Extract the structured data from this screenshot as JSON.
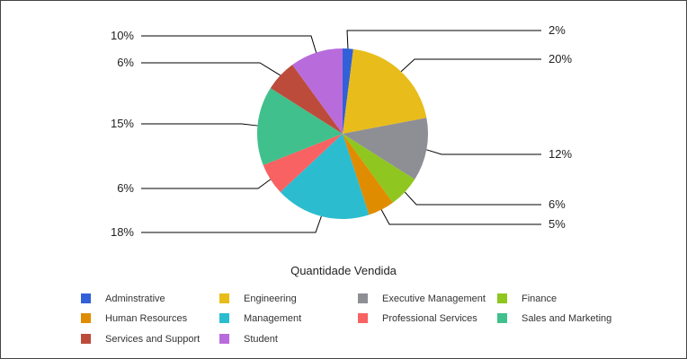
{
  "chart_data": {
    "type": "pie",
    "title": "Quantidade Vendida",
    "legend_position": "bottom",
    "slices": [
      {
        "name": "Adminstrative",
        "value": 2,
        "label": "2%",
        "color": "#3160d8"
      },
      {
        "name": "Engineering",
        "value": 20,
        "label": "20%",
        "color": "#e8bc1a"
      },
      {
        "name": "Executive Management",
        "value": 12,
        "label": "12%",
        "color": "#8e8e95"
      },
      {
        "name": "Finance",
        "value": 6,
        "label": "6%",
        "color": "#8fc620"
      },
      {
        "name": "Human Resources",
        "value": 5,
        "label": "5%",
        "color": "#e08c00"
      },
      {
        "name": "Management",
        "value": 18,
        "label": "18%",
        "color": "#2bbcd0"
      },
      {
        "name": "Professional Services",
        "value": 6,
        "label": "6%",
        "color": "#f86262"
      },
      {
        "name": "Sales and Marketing",
        "value": 15,
        "label": "15%",
        "color": "#40c08c"
      },
      {
        "name": "Services and Support",
        "value": 6,
        "label": "6%",
        "color": "#bd4b3b"
      },
      {
        "name": "Student",
        "value": 10,
        "label": "10%",
        "color": "#b86cdc"
      }
    ]
  }
}
